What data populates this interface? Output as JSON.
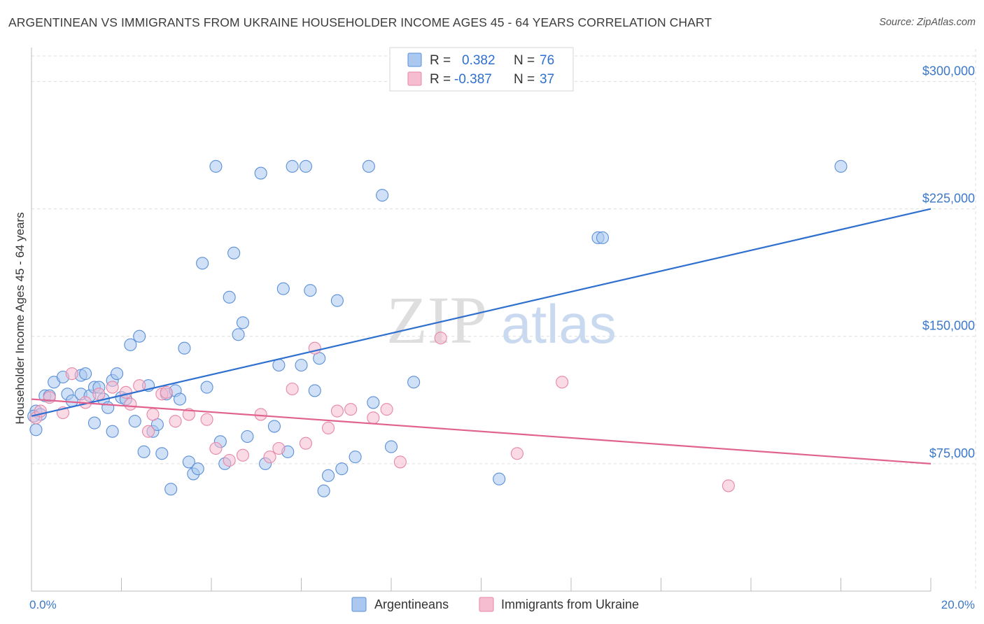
{
  "title": "ARGENTINEAN VS IMMIGRANTS FROM UKRAINE HOUSEHOLDER INCOME AGES 45 - 64 YEARS CORRELATION CHART",
  "source": "Source: ZipAtlas.com",
  "watermark": {
    "zip": "ZIP",
    "atlas": "atlas"
  },
  "colors": {
    "blue_fill": "#aac8f0",
    "blue_stroke": "#5a8fd8",
    "blue_line": "#2e6fd0",
    "pink_fill": "#f6bcd0",
    "pink_stroke": "#e687a8",
    "pink_line": "#e0638f",
    "tick_label": "#3b78c9",
    "grid": "#dddddd"
  },
  "legend_top": [
    {
      "r_label": "R =",
      "r_value": "0.382",
      "n_label": "N =",
      "n_value": "76"
    },
    {
      "r_label": "R =",
      "r_value": "-0.387",
      "n_label": "N =",
      "n_value": "37"
    }
  ],
  "legend_bottom": [
    "Argentineans",
    "Immigrants from Ukraine"
  ],
  "chart_data": {
    "type": "scatter",
    "title": "ARGENTINEAN VS IMMIGRANTS FROM UKRAINE HOUSEHOLDER INCOME AGES 45 - 64 YEARS CORRELATION CHART",
    "xlabel": "",
    "ylabel": "Householder Income Ages 45 - 64 years",
    "xlim": [
      0,
      20
    ],
    "ylim": [
      0,
      315000
    ],
    "x_tick_labels": [
      "0.0%",
      "20.0%"
    ],
    "y_ticks": [
      75000,
      150000,
      225000,
      300000
    ],
    "y_tick_labels": [
      "$75,000",
      "$150,000",
      "$225,000",
      "$300,000"
    ],
    "grid": true,
    "legend_position": "top-center",
    "series": [
      {
        "name": "Argentineans",
        "r": 0.382,
        "n": 76,
        "trend": {
          "x": [
            0,
            20
          ],
          "y": [
            103000,
            225000
          ]
        },
        "points": [
          [
            0.1,
            95000
          ],
          [
            0.1,
            106000
          ],
          [
            0.2,
            104000
          ],
          [
            0.3,
            115000
          ],
          [
            0.4,
            115000
          ],
          [
            0.5,
            123000
          ],
          [
            0.7,
            126000
          ],
          [
            0.8,
            116000
          ],
          [
            0.9,
            112000
          ],
          [
            1.1,
            127000
          ],
          [
            1.1,
            116000
          ],
          [
            1.2,
            128000
          ],
          [
            1.3,
            115000
          ],
          [
            1.4,
            120000
          ],
          [
            1.4,
            99000
          ],
          [
            1.5,
            120000
          ],
          [
            1.6,
            113000
          ],
          [
            1.7,
            108000
          ],
          [
            1.8,
            94000
          ],
          [
            1.8,
            124000
          ],
          [
            1.9,
            128000
          ],
          [
            2.0,
            114000
          ],
          [
            2.1,
            113000
          ],
          [
            2.2,
            145000
          ],
          [
            2.3,
            100000
          ],
          [
            2.4,
            150000
          ],
          [
            2.5,
            82000
          ],
          [
            2.6,
            121000
          ],
          [
            2.7,
            94000
          ],
          [
            2.8,
            98000
          ],
          [
            2.9,
            81000
          ],
          [
            3.0,
            116000
          ],
          [
            3.1,
            60000
          ],
          [
            3.2,
            118000
          ],
          [
            3.3,
            113000
          ],
          [
            3.4,
            143000
          ],
          [
            3.5,
            76000
          ],
          [
            3.6,
            69000
          ],
          [
            3.7,
            72000
          ],
          [
            3.8,
            193000
          ],
          [
            3.9,
            120000
          ],
          [
            4.1,
            250000
          ],
          [
            4.2,
            88000
          ],
          [
            4.3,
            75000
          ],
          [
            4.4,
            173000
          ],
          [
            4.5,
            199000
          ],
          [
            4.6,
            151000
          ],
          [
            4.7,
            158000
          ],
          [
            4.8,
            91000
          ],
          [
            5.1,
            246000
          ],
          [
            5.2,
            75000
          ],
          [
            5.4,
            97000
          ],
          [
            5.5,
            133000
          ],
          [
            5.6,
            178000
          ],
          [
            5.7,
            82000
          ],
          [
            5.8,
            250000
          ],
          [
            6.0,
            133000
          ],
          [
            6.1,
            250000
          ],
          [
            6.2,
            177000
          ],
          [
            6.3,
            118000
          ],
          [
            6.4,
            137000
          ],
          [
            6.5,
            59000
          ],
          [
            6.6,
            68000
          ],
          [
            6.8,
            171000
          ],
          [
            6.9,
            72000
          ],
          [
            7.2,
            79000
          ],
          [
            7.5,
            250000
          ],
          [
            7.6,
            111000
          ],
          [
            7.8,
            233000
          ],
          [
            8.0,
            85000
          ],
          [
            8.5,
            123000
          ],
          [
            10.4,
            66000
          ],
          [
            12.6,
            208000
          ],
          [
            12.7,
            208000
          ],
          [
            18.0,
            250000
          ],
          [
            0.05,
            103000
          ]
        ]
      },
      {
        "name": "Immigrants from Ukraine",
        "r": -0.387,
        "n": 37,
        "trend": {
          "x": [
            0,
            20
          ],
          "y": [
            113000,
            75000
          ]
        },
        "points": [
          [
            0.1,
            102000
          ],
          [
            0.2,
            106000
          ],
          [
            0.4,
            114000
          ],
          [
            0.7,
            105000
          ],
          [
            0.9,
            128000
          ],
          [
            1.2,
            111000
          ],
          [
            1.5,
            116000
          ],
          [
            1.8,
            120000
          ],
          [
            2.1,
            117000
          ],
          [
            2.2,
            110000
          ],
          [
            2.4,
            121000
          ],
          [
            2.6,
            94000
          ],
          [
            2.7,
            104000
          ],
          [
            2.9,
            116000
          ],
          [
            3.0,
            117000
          ],
          [
            3.2,
            100000
          ],
          [
            3.5,
            104000
          ],
          [
            3.9,
            101000
          ],
          [
            4.1,
            84000
          ],
          [
            4.4,
            77000
          ],
          [
            4.7,
            80000
          ],
          [
            5.1,
            104000
          ],
          [
            5.3,
            79000
          ],
          [
            5.5,
            84000
          ],
          [
            5.8,
            119000
          ],
          [
            6.1,
            87000
          ],
          [
            6.3,
            143000
          ],
          [
            6.6,
            96000
          ],
          [
            6.8,
            106000
          ],
          [
            7.1,
            107000
          ],
          [
            7.6,
            102000
          ],
          [
            7.9,
            107000
          ],
          [
            8.2,
            76000
          ],
          [
            9.1,
            149000
          ],
          [
            10.8,
            81000
          ],
          [
            11.8,
            123000
          ],
          [
            15.5,
            62000
          ]
        ]
      }
    ]
  }
}
